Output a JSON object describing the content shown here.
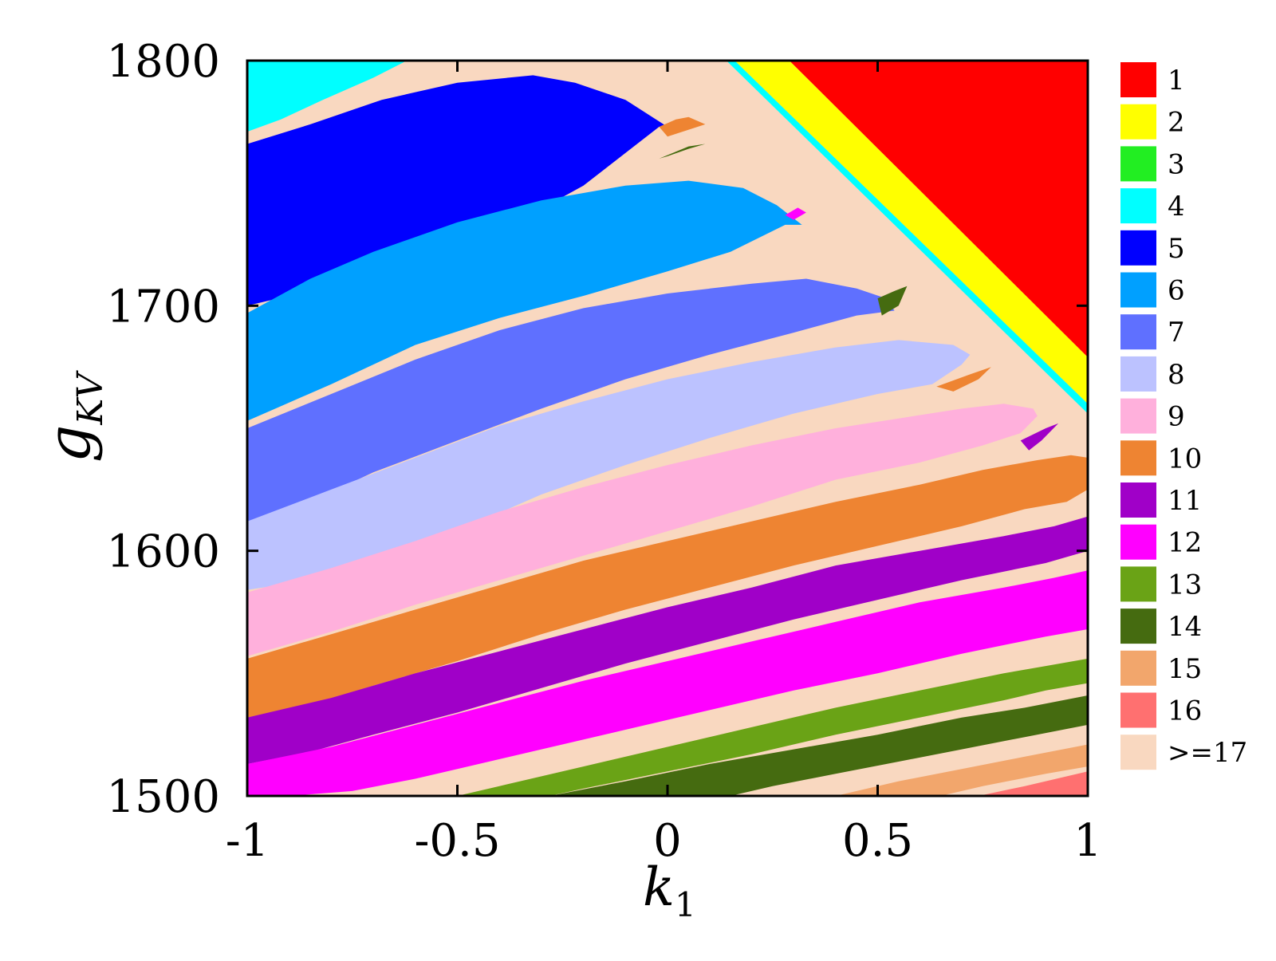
{
  "chart_data": {
    "type": "heatmap",
    "title": "",
    "xlabel": "k",
    "xlabel_sub": "1",
    "ylabel": "g",
    "ylabel_sub": "KV",
    "xlim": [
      -1,
      1
    ],
    "ylim": [
      1500,
      1800
    ],
    "xticks": [
      {
        "value": -1,
        "label": "-1"
      },
      {
        "value": -0.5,
        "label": "-0.5"
      },
      {
        "value": 0,
        "label": "0"
      },
      {
        "value": 0.5,
        "label": "0.5"
      },
      {
        "value": 1,
        "label": "1"
      }
    ],
    "yticks": [
      {
        "value": 1500,
        "label": "1500"
      },
      {
        "value": 1600,
        "label": "1600"
      },
      {
        "value": 1700,
        "label": "1700"
      },
      {
        "value": 1800,
        "label": "1800"
      }
    ],
    "grid": false,
    "legend_position": "right",
    "background_class": ">=17",
    "legend": [
      {
        "label": "1",
        "color": "#ff0000"
      },
      {
        "label": "2",
        "color": "#ffff00"
      },
      {
        "label": "3",
        "color": "#22ee22"
      },
      {
        "label": "4",
        "color": "#00ffff"
      },
      {
        "label": "5",
        "color": "#0000ff"
      },
      {
        "label": "6",
        "color": "#00a0ff"
      },
      {
        "label": "7",
        "color": "#5f70ff"
      },
      {
        "label": "8",
        "color": "#bcc2ff"
      },
      {
        "label": "9",
        "color": "#ffb0dc"
      },
      {
        "label": "10",
        "color": "#ee8432"
      },
      {
        "label": "11",
        "color": "#a000c8"
      },
      {
        "label": "12",
        "color": "#ff00ff"
      },
      {
        "label": "13",
        "color": "#6aa316"
      },
      {
        "label": "14",
        "color": "#456b10"
      },
      {
        "label": "15",
        "color": "#f2a66c"
      },
      {
        "label": "16",
        "color": "#ff7070"
      },
      {
        "label": ">=17",
        "color": "#f9d8c0"
      }
    ],
    "regions": [
      {
        "class": "4",
        "polygon": [
          [
            -1,
            1800
          ],
          [
            -0.62,
            1800
          ],
          [
            -0.7,
            1793
          ],
          [
            -0.82,
            1784
          ],
          [
            -0.92,
            1776
          ],
          [
            -1,
            1771
          ]
        ]
      },
      {
        "class": "5",
        "polygon": [
          [
            -1,
            1766
          ],
          [
            -0.85,
            1774
          ],
          [
            -0.68,
            1784
          ],
          [
            -0.5,
            1791
          ],
          [
            -0.32,
            1794
          ],
          [
            -0.22,
            1791
          ],
          [
            -0.1,
            1784
          ],
          [
            0,
            1773
          ],
          [
            -0.02,
            1773
          ],
          [
            -0.2,
            1749
          ],
          [
            -0.38,
            1732
          ],
          [
            -0.55,
            1720
          ],
          [
            -0.75,
            1710
          ],
          [
            -1,
            1700
          ]
        ]
      },
      {
        "class": "10",
        "polygon": [
          [
            -0.02,
            1773
          ],
          [
            0.02,
            1776
          ],
          [
            0.05,
            1777
          ],
          [
            0.09,
            1774
          ],
          [
            0.0,
            1769
          ]
        ]
      },
      {
        "class": "14",
        "polygon": [
          [
            -0.02,
            1760
          ],
          [
            0.05,
            1765
          ],
          [
            0.09,
            1766
          ],
          [
            0.05,
            1764
          ],
          [
            0.0,
            1761
          ]
        ]
      },
      {
        "class": "6",
        "polygon": [
          [
            -1,
            1697
          ],
          [
            -0.85,
            1711
          ],
          [
            -0.7,
            1722
          ],
          [
            -0.5,
            1734
          ],
          [
            -0.3,
            1743
          ],
          [
            -0.1,
            1749
          ],
          [
            0.05,
            1751
          ],
          [
            0.18,
            1748
          ],
          [
            0.26,
            1741
          ],
          [
            0.32,
            1733
          ],
          [
            0.28,
            1733
          ],
          [
            0.15,
            1722
          ],
          [
            0.0,
            1714
          ],
          [
            -0.2,
            1704
          ],
          [
            -0.4,
            1695
          ],
          [
            -0.6,
            1684
          ],
          [
            -0.8,
            1668
          ],
          [
            -1,
            1653
          ]
        ]
      },
      {
        "class": "12",
        "polygon": [
          [
            0.28,
            1737
          ],
          [
            0.31,
            1740
          ],
          [
            0.33,
            1738
          ],
          [
            0.3,
            1735
          ]
        ]
      },
      {
        "class": "7",
        "polygon": [
          [
            -1,
            1650
          ],
          [
            -0.8,
            1664
          ],
          [
            -0.6,
            1678
          ],
          [
            -0.4,
            1690
          ],
          [
            -0.2,
            1699
          ],
          [
            0.0,
            1705
          ],
          [
            0.2,
            1709
          ],
          [
            0.33,
            1711
          ],
          [
            0.45,
            1707
          ],
          [
            0.52,
            1703
          ],
          [
            0.54,
            1698
          ],
          [
            0.45,
            1696
          ],
          [
            0.3,
            1689
          ],
          [
            0.1,
            1680
          ],
          [
            -0.1,
            1670
          ],
          [
            -0.3,
            1658
          ],
          [
            -0.5,
            1645
          ],
          [
            -0.7,
            1632
          ],
          [
            -0.85,
            1620
          ],
          [
            -1,
            1612
          ]
        ]
      },
      {
        "class": "14",
        "polygon": [
          [
            0.5,
            1703
          ],
          [
            0.54,
            1706
          ],
          [
            0.57,
            1708
          ],
          [
            0.55,
            1700
          ],
          [
            0.51,
            1696
          ]
        ]
      },
      {
        "class": "8",
        "polygon": [
          [
            -1,
            1612
          ],
          [
            -0.8,
            1625
          ],
          [
            -0.6,
            1638
          ],
          [
            -0.4,
            1651
          ],
          [
            -0.2,
            1661
          ],
          [
            0.0,
            1670
          ],
          [
            0.2,
            1677
          ],
          [
            0.4,
            1683
          ],
          [
            0.55,
            1686
          ],
          [
            0.68,
            1684
          ],
          [
            0.72,
            1680
          ],
          [
            0.7,
            1676
          ],
          [
            0.63,
            1668
          ],
          [
            0.5,
            1664
          ],
          [
            0.3,
            1656
          ],
          [
            0.1,
            1646
          ],
          [
            -0.1,
            1635
          ],
          [
            -0.3,
            1623
          ],
          [
            -0.5,
            1608
          ],
          [
            -0.7,
            1594
          ],
          [
            -0.85,
            1588
          ],
          [
            -1,
            1584
          ]
        ]
      },
      {
        "class": "10",
        "polygon": [
          [
            0.64,
            1667
          ],
          [
            0.72,
            1672
          ],
          [
            0.77,
            1675
          ],
          [
            0.74,
            1670
          ],
          [
            0.68,
            1665
          ]
        ]
      },
      {
        "class": "9",
        "polygon": [
          [
            -1,
            1583
          ],
          [
            -0.8,
            1593
          ],
          [
            -0.6,
            1604
          ],
          [
            -0.4,
            1616
          ],
          [
            -0.2,
            1626
          ],
          [
            0.0,
            1635
          ],
          [
            0.2,
            1643
          ],
          [
            0.4,
            1650
          ],
          [
            0.55,
            1654
          ],
          [
            0.7,
            1658
          ],
          [
            0.8,
            1660
          ],
          [
            0.87,
            1658
          ],
          [
            0.88,
            1655
          ],
          [
            0.84,
            1648
          ],
          [
            0.75,
            1643
          ],
          [
            0.6,
            1636
          ],
          [
            0.4,
            1629
          ],
          [
            0.2,
            1618
          ],
          [
            0.0,
            1608
          ],
          [
            -0.2,
            1598
          ],
          [
            -0.4,
            1588
          ],
          [
            -0.6,
            1578
          ],
          [
            -0.8,
            1567
          ],
          [
            -1,
            1557
          ]
        ]
      },
      {
        "class": "11",
        "polygon": [
          [
            0.84,
            1645
          ],
          [
            0.9,
            1650
          ],
          [
            0.93,
            1652
          ],
          [
            0.89,
            1645
          ],
          [
            0.86,
            1641
          ]
        ]
      },
      {
        "class": "10",
        "polygon": [
          [
            -1,
            1556
          ],
          [
            -0.8,
            1566
          ],
          [
            -0.6,
            1576
          ],
          [
            -0.4,
            1586
          ],
          [
            -0.2,
            1596
          ],
          [
            0.0,
            1604
          ],
          [
            0.2,
            1612
          ],
          [
            0.4,
            1620
          ],
          [
            0.6,
            1627
          ],
          [
            0.75,
            1633
          ],
          [
            0.88,
            1637
          ],
          [
            0.96,
            1639
          ],
          [
            1.0,
            1638
          ],
          [
            1.0,
            1625
          ],
          [
            0.95,
            1620
          ],
          [
            0.85,
            1617
          ],
          [
            0.7,
            1610
          ],
          [
            0.5,
            1602
          ],
          [
            0.3,
            1594
          ],
          [
            0.1,
            1585
          ],
          [
            -0.1,
            1576
          ],
          [
            -0.3,
            1566
          ],
          [
            -0.5,
            1555
          ],
          [
            -0.7,
            1545
          ],
          [
            -0.85,
            1537
          ],
          [
            -1,
            1532
          ]
        ]
      },
      {
        "class": "11",
        "polygon": [
          [
            -1,
            1532
          ],
          [
            -0.8,
            1540
          ],
          [
            -0.6,
            1550
          ],
          [
            -0.4,
            1559
          ],
          [
            -0.2,
            1568
          ],
          [
            0.0,
            1577
          ],
          [
            0.2,
            1585
          ],
          [
            0.4,
            1594
          ],
          [
            0.6,
            1600
          ],
          [
            0.8,
            1606
          ],
          [
            0.92,
            1610
          ],
          [
            1.0,
            1614
          ],
          [
            1.0,
            1600
          ],
          [
            0.9,
            1595
          ],
          [
            0.7,
            1588
          ],
          [
            0.5,
            1580
          ],
          [
            0.3,
            1572
          ],
          [
            0.1,
            1563
          ],
          [
            -0.1,
            1554
          ],
          [
            -0.3,
            1544
          ],
          [
            -0.5,
            1534
          ],
          [
            -0.7,
            1525
          ],
          [
            -0.85,
            1518
          ],
          [
            -1,
            1513
          ]
        ]
      },
      {
        "class": "12",
        "polygon": [
          [
            -1,
            1513
          ],
          [
            -0.8,
            1520
          ],
          [
            -0.6,
            1529
          ],
          [
            -0.4,
            1538
          ],
          [
            -0.2,
            1547
          ],
          [
            0.0,
            1555
          ],
          [
            0.2,
            1563
          ],
          [
            0.4,
            1571
          ],
          [
            0.6,
            1579
          ],
          [
            0.8,
            1585
          ],
          [
            0.92,
            1589
          ],
          [
            1.0,
            1592
          ],
          [
            1.0,
            1568
          ],
          [
            0.9,
            1565
          ],
          [
            0.7,
            1558
          ],
          [
            0.5,
            1550
          ],
          [
            0.3,
            1543
          ],
          [
            0.1,
            1535
          ],
          [
            -0.1,
            1527
          ],
          [
            -0.3,
            1519
          ],
          [
            -0.5,
            1511
          ],
          [
            -0.6,
            1507
          ],
          [
            -0.75,
            1502
          ],
          [
            -0.9,
            1500
          ],
          [
            -1,
            1500
          ]
        ]
      },
      {
        "class": "13",
        "polygon": [
          [
            -0.5,
            1500
          ],
          [
            -0.4,
            1504
          ],
          [
            -0.2,
            1512
          ],
          [
            0.0,
            1520
          ],
          [
            0.2,
            1528
          ],
          [
            0.4,
            1536
          ],
          [
            0.6,
            1543
          ],
          [
            0.8,
            1550
          ],
          [
            0.9,
            1553
          ],
          [
            1.0,
            1556
          ],
          [
            1.0,
            1546
          ],
          [
            0.9,
            1543
          ],
          [
            0.8,
            1539
          ],
          [
            0.6,
            1532
          ],
          [
            0.4,
            1525
          ],
          [
            0.2,
            1517
          ],
          [
            0.0,
            1510
          ],
          [
            -0.2,
            1503
          ],
          [
            -0.28,
            1500
          ]
        ]
      },
      {
        "class": "14",
        "polygon": [
          [
            -0.28,
            1500
          ],
          [
            -0.1,
            1506
          ],
          [
            0.1,
            1513
          ],
          [
            0.3,
            1519
          ],
          [
            0.5,
            1525
          ],
          [
            0.7,
            1532
          ],
          [
            0.85,
            1536
          ],
          [
            1.0,
            1541
          ],
          [
            1.0,
            1529
          ],
          [
            0.85,
            1524
          ],
          [
            0.7,
            1519
          ],
          [
            0.55,
            1514
          ],
          [
            0.4,
            1509
          ],
          [
            0.25,
            1504
          ],
          [
            0.15,
            1500
          ]
        ]
      },
      {
        "class": "15",
        "polygon": [
          [
            0.4,
            1500
          ],
          [
            0.55,
            1506
          ],
          [
            0.7,
            1511
          ],
          [
            0.85,
            1516
          ],
          [
            1.0,
            1521
          ],
          [
            1.0,
            1512
          ],
          [
            0.9,
            1509
          ],
          [
            0.75,
            1504
          ],
          [
            0.65,
            1500
          ]
        ]
      },
      {
        "class": "16",
        "polygon": [
          [
            0.74,
            1500
          ],
          [
            0.85,
            1504
          ],
          [
            1.0,
            1510
          ],
          [
            1.0,
            1500
          ]
        ]
      },
      {
        "class": "4",
        "polygon": [
          [
            0.14,
            1800
          ],
          [
            0.16,
            1800
          ],
          [
            1.0,
            1660
          ],
          [
            1.0,
            1656
          ]
        ]
      },
      {
        "class": "2",
        "polygon": [
          [
            0.16,
            1800
          ],
          [
            0.29,
            1800
          ],
          [
            1.0,
            1679
          ],
          [
            1.0,
            1660
          ]
        ]
      },
      {
        "class": "1",
        "polygon": [
          [
            0.29,
            1800
          ],
          [
            1.0,
            1800
          ],
          [
            1.0,
            1679
          ]
        ]
      }
    ]
  }
}
